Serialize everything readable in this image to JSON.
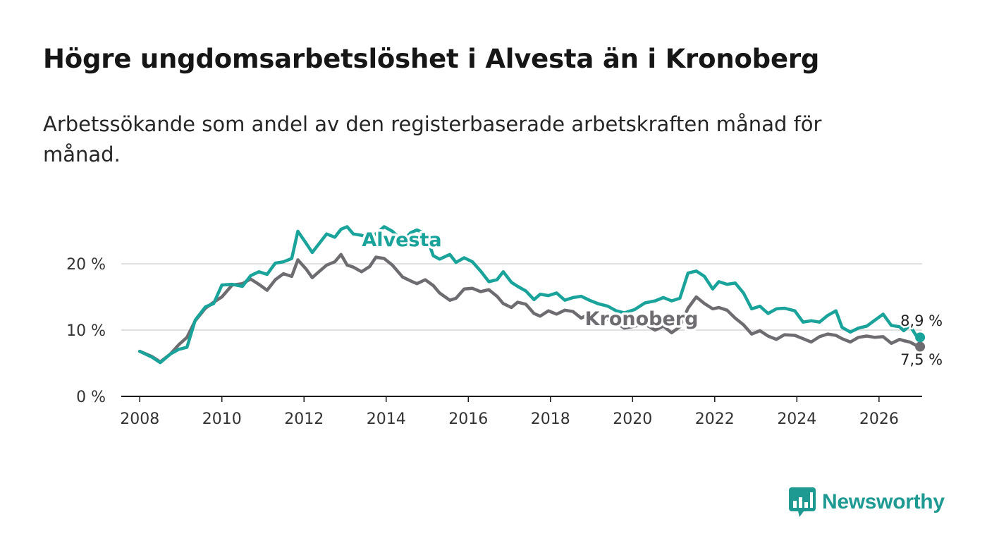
{
  "title": "Högre ungdomsarbetslöshet i Alvesta än i Kronoberg",
  "subtitle": "Arbetssökande som andel av den registerbaserade arbetskraften månad för månad.",
  "brand": {
    "name": "Newsworthy",
    "color": "#1f9a92",
    "icon": "newsworthy-logo-icon"
  },
  "chart_data": {
    "type": "line",
    "title": "Högre ungdomsarbetslöshet i Alvesta än i Kronoberg",
    "xlabel": "",
    "ylabel": "",
    "xlim": [
      2007.55,
      2027.05
    ],
    "ylim": [
      0,
      20
    ],
    "x_ticks": [
      2008,
      2010,
      2012,
      2014,
      2016,
      2018,
      2020,
      2022,
      2024,
      2026
    ],
    "y_ticks": [
      {
        "value": 0,
        "label": "0 %"
      },
      {
        "value": 10,
        "label": "10 %"
      },
      {
        "value": 20,
        "label": "20 %"
      }
    ],
    "grid": true,
    "series": [
      {
        "name": "Alvesta",
        "color": "#1aa39a",
        "end_label": "8,9 %",
        "points": [
          [
            2008.0,
            6.8
          ],
          [
            2008.3,
            5.9
          ],
          [
            2008.5,
            5.1
          ],
          [
            2008.75,
            6.4
          ],
          [
            2008.95,
            7.1
          ],
          [
            2009.15,
            7.4
          ],
          [
            2009.35,
            11.5
          ],
          [
            2009.6,
            13.5
          ],
          [
            2009.8,
            14.0
          ],
          [
            2010.0,
            16.8
          ],
          [
            2010.25,
            16.9
          ],
          [
            2010.5,
            16.6
          ],
          [
            2010.7,
            18.2
          ],
          [
            2010.9,
            18.8
          ],
          [
            2011.1,
            18.4
          ],
          [
            2011.3,
            20.1
          ],
          [
            2011.5,
            20.3
          ],
          [
            2011.7,
            20.8
          ],
          [
            2011.85,
            24.9
          ],
          [
            2012.05,
            23.1
          ],
          [
            2012.2,
            21.7
          ],
          [
            2012.4,
            23.3
          ],
          [
            2012.55,
            24.5
          ],
          [
            2012.75,
            24.0
          ],
          [
            2012.9,
            25.2
          ],
          [
            2013.05,
            25.6
          ],
          [
            2013.2,
            24.5
          ],
          [
            2013.4,
            24.3
          ],
          [
            2013.6,
            23.9
          ],
          [
            2013.75,
            24.5
          ],
          [
            2013.95,
            25.6
          ],
          [
            2014.15,
            24.9
          ],
          [
            2014.4,
            23.4
          ],
          [
            2014.6,
            24.7
          ],
          [
            2014.75,
            25.1
          ],
          [
            2014.95,
            24.6
          ],
          [
            2015.15,
            21.2
          ],
          [
            2015.3,
            20.7
          ],
          [
            2015.55,
            21.4
          ],
          [
            2015.7,
            20.2
          ],
          [
            2015.9,
            20.9
          ],
          [
            2016.1,
            20.3
          ],
          [
            2016.3,
            18.9
          ],
          [
            2016.5,
            17.3
          ],
          [
            2016.7,
            17.6
          ],
          [
            2016.85,
            18.8
          ],
          [
            2017.05,
            17.2
          ],
          [
            2017.2,
            16.6
          ],
          [
            2017.4,
            15.9
          ],
          [
            2017.6,
            14.6
          ],
          [
            2017.75,
            15.4
          ],
          [
            2017.95,
            15.2
          ],
          [
            2018.15,
            15.6
          ],
          [
            2018.35,
            14.5
          ],
          [
            2018.55,
            14.9
          ],
          [
            2018.75,
            15.1
          ],
          [
            2018.95,
            14.5
          ],
          [
            2019.15,
            14.0
          ],
          [
            2019.4,
            13.6
          ],
          [
            2019.6,
            12.9
          ],
          [
            2019.8,
            12.6
          ],
          [
            2020.05,
            13.1
          ],
          [
            2020.3,
            14.1
          ],
          [
            2020.55,
            14.4
          ],
          [
            2020.75,
            14.9
          ],
          [
            2020.95,
            14.4
          ],
          [
            2021.15,
            14.8
          ],
          [
            2021.35,
            18.6
          ],
          [
            2021.55,
            18.9
          ],
          [
            2021.75,
            18.1
          ],
          [
            2021.95,
            16.2
          ],
          [
            2022.1,
            17.3
          ],
          [
            2022.3,
            16.9
          ],
          [
            2022.5,
            17.1
          ],
          [
            2022.7,
            15.6
          ],
          [
            2022.9,
            13.2
          ],
          [
            2023.1,
            13.6
          ],
          [
            2023.3,
            12.5
          ],
          [
            2023.5,
            13.2
          ],
          [
            2023.7,
            13.3
          ],
          [
            2023.95,
            12.9
          ],
          [
            2024.15,
            11.2
          ],
          [
            2024.35,
            11.4
          ],
          [
            2024.55,
            11.2
          ],
          [
            2024.75,
            12.2
          ],
          [
            2024.95,
            12.9
          ],
          [
            2025.1,
            10.4
          ],
          [
            2025.3,
            9.7
          ],
          [
            2025.5,
            10.3
          ],
          [
            2025.7,
            10.6
          ],
          [
            2025.9,
            11.5
          ],
          [
            2026.1,
            12.4
          ],
          [
            2026.3,
            10.7
          ],
          [
            2026.5,
            10.5
          ],
          [
            2026.6,
            9.9
          ],
          [
            2026.75,
            10.7
          ],
          [
            2026.9,
            9.2
          ],
          [
            2027.0,
            8.9
          ]
        ]
      },
      {
        "name": "Kronoberg",
        "color": "#6e6c71",
        "end_label": "7,5 %",
        "points": [
          [
            2008.0,
            6.8
          ],
          [
            2008.3,
            6.0
          ],
          [
            2008.5,
            5.2
          ],
          [
            2008.75,
            6.4
          ],
          [
            2008.95,
            7.8
          ],
          [
            2009.15,
            8.9
          ],
          [
            2009.35,
            11.4
          ],
          [
            2009.6,
            13.3
          ],
          [
            2009.8,
            14.2
          ],
          [
            2010.0,
            15.0
          ],
          [
            2010.25,
            16.8
          ],
          [
            2010.5,
            17.0
          ],
          [
            2010.7,
            17.7
          ],
          [
            2010.9,
            16.9
          ],
          [
            2011.1,
            16.0
          ],
          [
            2011.3,
            17.6
          ],
          [
            2011.5,
            18.5
          ],
          [
            2011.7,
            18.1
          ],
          [
            2011.85,
            20.6
          ],
          [
            2012.05,
            19.2
          ],
          [
            2012.2,
            17.9
          ],
          [
            2012.4,
            19.0
          ],
          [
            2012.55,
            19.8
          ],
          [
            2012.75,
            20.3
          ],
          [
            2012.9,
            21.4
          ],
          [
            2013.05,
            19.8
          ],
          [
            2013.2,
            19.5
          ],
          [
            2013.4,
            18.8
          ],
          [
            2013.6,
            19.6
          ],
          [
            2013.75,
            21.0
          ],
          [
            2013.95,
            20.8
          ],
          [
            2014.15,
            19.8
          ],
          [
            2014.4,
            18.0
          ],
          [
            2014.6,
            17.4
          ],
          [
            2014.75,
            17.0
          ],
          [
            2014.95,
            17.6
          ],
          [
            2015.15,
            16.7
          ],
          [
            2015.3,
            15.6
          ],
          [
            2015.55,
            14.5
          ],
          [
            2015.7,
            14.8
          ],
          [
            2015.9,
            16.2
          ],
          [
            2016.1,
            16.3
          ],
          [
            2016.3,
            15.8
          ],
          [
            2016.5,
            16.1
          ],
          [
            2016.7,
            15.1
          ],
          [
            2016.85,
            14.0
          ],
          [
            2017.05,
            13.4
          ],
          [
            2017.2,
            14.2
          ],
          [
            2017.4,
            13.9
          ],
          [
            2017.6,
            12.5
          ],
          [
            2017.75,
            12.1
          ],
          [
            2017.95,
            12.9
          ],
          [
            2018.15,
            12.4
          ],
          [
            2018.35,
            13.0
          ],
          [
            2018.55,
            12.8
          ],
          [
            2018.75,
            11.8
          ],
          [
            2018.95,
            12.5
          ],
          [
            2019.15,
            12.6
          ],
          [
            2019.4,
            11.6
          ],
          [
            2019.6,
            11.1
          ],
          [
            2019.8,
            10.3
          ],
          [
            2020.05,
            10.6
          ],
          [
            2020.3,
            10.9
          ],
          [
            2020.55,
            10.0
          ],
          [
            2020.75,
            10.6
          ],
          [
            2020.95,
            9.6
          ],
          [
            2021.15,
            10.5
          ],
          [
            2021.35,
            13.3
          ],
          [
            2021.55,
            15.0
          ],
          [
            2021.75,
            14.0
          ],
          [
            2021.95,
            13.2
          ],
          [
            2022.1,
            13.4
          ],
          [
            2022.3,
            13.0
          ],
          [
            2022.5,
            11.8
          ],
          [
            2022.7,
            10.8
          ],
          [
            2022.9,
            9.4
          ],
          [
            2023.1,
            9.9
          ],
          [
            2023.3,
            9.1
          ],
          [
            2023.5,
            8.6
          ],
          [
            2023.7,
            9.3
          ],
          [
            2023.95,
            9.2
          ],
          [
            2024.15,
            8.7
          ],
          [
            2024.35,
            8.2
          ],
          [
            2024.55,
            9.0
          ],
          [
            2024.75,
            9.4
          ],
          [
            2024.95,
            9.2
          ],
          [
            2025.1,
            8.7
          ],
          [
            2025.3,
            8.2
          ],
          [
            2025.5,
            8.9
          ],
          [
            2025.7,
            9.1
          ],
          [
            2025.9,
            8.9
          ],
          [
            2026.1,
            9.0
          ],
          [
            2026.3,
            8.0
          ],
          [
            2026.5,
            8.6
          ],
          [
            2026.6,
            8.4
          ],
          [
            2026.75,
            8.2
          ],
          [
            2026.9,
            7.7
          ],
          [
            2027.0,
            7.5
          ]
        ]
      }
    ]
  }
}
